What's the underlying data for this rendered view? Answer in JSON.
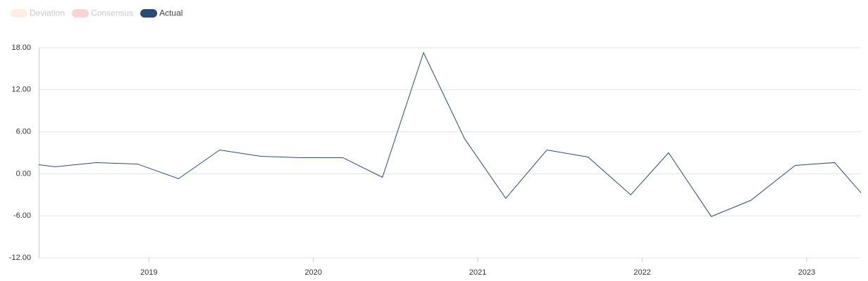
{
  "chart_data": {
    "type": "line",
    "legend": [
      {
        "name": "Deviation",
        "color": "#fbeee4",
        "active": false
      },
      {
        "name": "Consensus",
        "color": "#f5d6d6",
        "active": false
      },
      {
        "name": "Actual",
        "color": "#2c4a78",
        "active": true
      }
    ],
    "x": [
      2018.33,
      2018.43,
      2018.68,
      2018.93,
      2019.18,
      2019.43,
      2019.68,
      2019.93,
      2020.18,
      2020.42,
      2020.67,
      2020.92,
      2021.17,
      2021.42,
      2021.67,
      2021.93,
      2022.16,
      2022.42,
      2022.66,
      2022.93,
      2023.17,
      2023.33
    ],
    "series": [
      {
        "name": "Actual",
        "color": "#2c4a78",
        "values": [
          1.3,
          1.0,
          1.6,
          1.4,
          -0.7,
          3.4,
          2.5,
          2.3,
          2.3,
          -0.5,
          17.3,
          5.0,
          -3.5,
          3.4,
          2.4,
          -3.0,
          3.0,
          -6.1,
          -3.8,
          1.2,
          1.6,
          -2.7
        ]
      }
    ],
    "xlim": [
      2018.33,
      2023.33
    ],
    "xticks": [
      2019,
      2020,
      2021,
      2022,
      2023
    ],
    "ylim": [
      -12,
      18
    ],
    "yticks": [
      {
        "value": -12,
        "label": "-12.00"
      },
      {
        "value": -6,
        "label": "-6.00"
      },
      {
        "value": 0,
        "label": "0.00"
      },
      {
        "value": 6,
        "label": "6.00"
      },
      {
        "value": 12,
        "label": "12.00"
      },
      {
        "value": 18,
        "label": "18.00"
      }
    ],
    "grid": true
  }
}
